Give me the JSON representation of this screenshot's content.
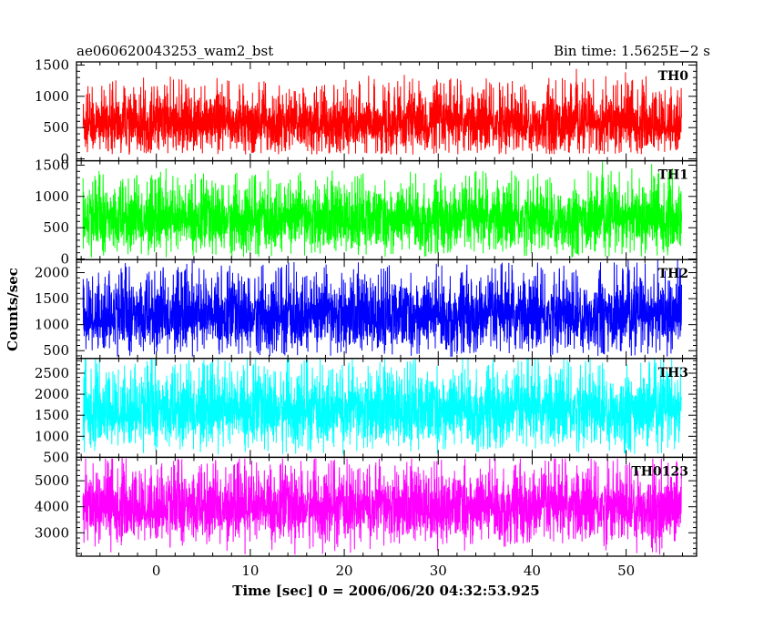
{
  "header": {
    "left_title": "ae060620043253_wam2_bst",
    "right_title": "Bin time: 1.5625E−2 s"
  },
  "chart_data": {
    "type": "line",
    "xlabel": "Time [sec] 0 = 2006/06/20 04:32:53.925",
    "ylabel": "Counts/sec",
    "xlim": [
      -8.5,
      57.5
    ],
    "x_ticks": [
      0,
      10,
      20,
      30,
      40,
      50
    ],
    "x_range_data": [
      -7.8,
      55.9
    ],
    "bin_time_s": 0.015625,
    "panels": [
      {
        "name": "TH0",
        "color": "#ff0000",
        "ylim": [
          -30,
          1550
        ],
        "y_ticks": [
          0,
          500,
          1000,
          1500
        ],
        "y_tick_labels": [
          "0",
          "500",
          "1000",
          "1500"
        ],
        "mean": 560,
        "spread": 230,
        "min_clip": 70,
        "peak_max": 1540
      },
      {
        "name": "TH1",
        "color": "#00ff00",
        "ylim": [
          -10,
          1570
        ],
        "y_ticks": [
          0,
          500,
          1000,
          1500
        ],
        "y_tick_labels": [
          "0",
          "500",
          "1000",
          "1500"
        ],
        "mean": 620,
        "spread": 250,
        "min_clip": 20,
        "peak_max": 1560
      },
      {
        "name": "TH2",
        "color": "#0000ff",
        "ylim": [
          350,
          2250
        ],
        "y_ticks": [
          500,
          1000,
          1500,
          2000
        ],
        "y_tick_labels": [
          "500",
          "1000",
          "1500",
          "2000"
        ],
        "mean": 1150,
        "spread": 330,
        "min_clip": 380,
        "peak_max": 2240
      },
      {
        "name": "TH3",
        "color": "#00ffff",
        "ylim": [
          500,
          2850
        ],
        "y_ticks": [
          500,
          1000,
          1500,
          2000,
          2500
        ],
        "y_tick_labels": [
          "500",
          "1000",
          "1500",
          "2000",
          "2500"
        ],
        "mean": 1600,
        "spread": 420,
        "min_clip": 560,
        "peak_max": 2840
      },
      {
        "name": "TH0123",
        "color": "#ff00ff",
        "ylim": [
          2100,
          5900
        ],
        "y_ticks": [
          3000,
          4000,
          5000
        ],
        "y_tick_labels": [
          "3000",
          "4000",
          "5000"
        ],
        "mean": 3950,
        "spread": 640,
        "min_clip": 2150,
        "peak_max": 5850
      }
    ]
  }
}
